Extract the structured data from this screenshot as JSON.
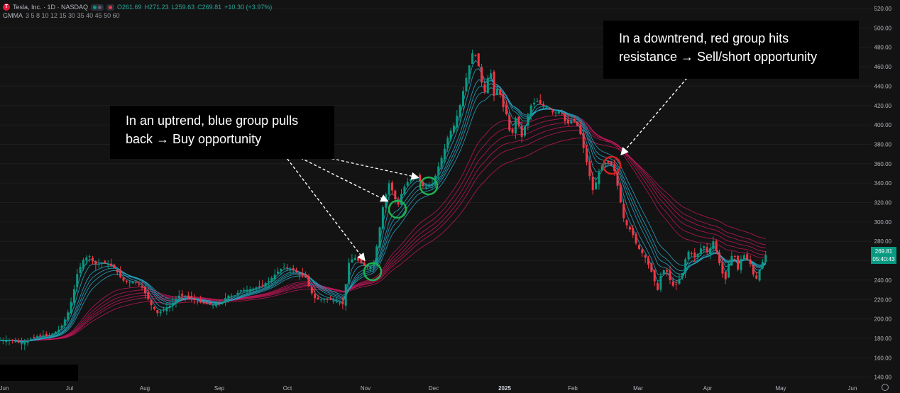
{
  "header": {
    "logo_letter": "T",
    "symbol_line": "Tesla, Inc. · 1D · NASDAQ",
    "ohlc": {
      "open": "O261.69",
      "high": "H271.23",
      "low": "L259.63",
      "close": "C269.81",
      "change": "+10.30 (+3.97%)"
    },
    "indicator_name": "GMMA",
    "indicator_periods": "3 5 8 10 12 15 30 35 40 45 50 60"
  },
  "annotations": {
    "uptrend": "In an uptrend, blue group pulls back → Buy opportunity",
    "downtrend": "In a downtrend, red group hits resistance → Sell/short opportunity"
  },
  "price_label": {
    "price": "269.81",
    "countdown": "05:40:43"
  },
  "colors": {
    "background": "#131313",
    "up": "#089981",
    "down": "#f23645",
    "fast_group": "#27a9c9",
    "slow_group": "#c2185b",
    "buy_circle": "#1fb14f",
    "sell_circle": "#d71f1f",
    "grid": "#1e1e1e"
  },
  "chart_data": {
    "type": "candlestick",
    "y_axis_ticks": [
      520,
      500,
      480,
      460,
      440,
      420,
      400,
      380,
      360,
      340,
      320,
      300,
      280,
      260,
      240,
      220,
      200,
      180,
      160,
      140
    ],
    "ylim": [
      130,
      528
    ],
    "x_axis_labels": [
      "Jun",
      "Jul",
      "Aug",
      "Sep",
      "Oct",
      "Nov",
      "Dec",
      "2025",
      "Feb",
      "Mar",
      "Apr",
      "May",
      "Jun"
    ],
    "close_path": [
      [
        0,
        178
      ],
      [
        15,
        178
      ],
      [
        30,
        175
      ],
      [
        45,
        180
      ],
      [
        55,
        183
      ],
      [
        70,
        183
      ],
      [
        85,
        190
      ],
      [
        95,
        205
      ],
      [
        103,
        225
      ],
      [
        108,
        245
      ],
      [
        118,
        262
      ],
      [
        126,
        265
      ],
      [
        134,
        256
      ],
      [
        144,
        258
      ],
      [
        154,
        256
      ],
      [
        162,
        252
      ],
      [
        172,
        240
      ],
      [
        180,
        238
      ],
      [
        190,
        238
      ],
      [
        198,
        235
      ],
      [
        207,
        223
      ],
      [
        214,
        213
      ],
      [
        222,
        206
      ],
      [
        232,
        210
      ],
      [
        242,
        215
      ],
      [
        252,
        224
      ],
      [
        262,
        224
      ],
      [
        272,
        220
      ],
      [
        282,
        217
      ],
      [
        292,
        215
      ],
      [
        302,
        214
      ],
      [
        312,
        216
      ],
      [
        320,
        224
      ],
      [
        330,
        224
      ],
      [
        340,
        230
      ],
      [
        350,
        230
      ],
      [
        360,
        232
      ],
      [
        370,
        235
      ],
      [
        380,
        240
      ],
      [
        390,
        248
      ],
      [
        400,
        254
      ],
      [
        407,
        252
      ],
      [
        414,
        250
      ],
      [
        422,
        246
      ],
      [
        430,
        244
      ],
      [
        438,
        228
      ],
      [
        445,
        220
      ],
      [
        455,
        220
      ],
      [
        465,
        220
      ],
      [
        475,
        218
      ],
      [
        483,
        215
      ],
      [
        492,
        260
      ],
      [
        500,
        263
      ],
      [
        508,
        258
      ],
      [
        515,
        254
      ],
      [
        520,
        253
      ],
      [
        526,
        256
      ],
      [
        532,
        280
      ],
      [
        540,
        318
      ],
      [
        548,
        340
      ],
      [
        555,
        328
      ],
      [
        560,
        315
      ],
      [
        566,
        330
      ],
      [
        572,
        340
      ],
      [
        580,
        345
      ],
      [
        587,
        348
      ],
      [
        594,
        338
      ],
      [
        602,
        335
      ],
      [
        610,
        340
      ],
      [
        618,
        358
      ],
      [
        625,
        372
      ],
      [
        632,
        390
      ],
      [
        640,
        400
      ],
      [
        648,
        420
      ],
      [
        654,
        440
      ],
      [
        660,
        458
      ],
      [
        666,
        475
      ],
      [
        672,
        470
      ],
      [
        678,
        445
      ],
      [
        684,
        432
      ],
      [
        690,
        462
      ],
      [
        696,
        430
      ],
      [
        702,
        440
      ],
      [
        708,
        420
      ],
      [
        714,
        410
      ],
      [
        720,
        385
      ],
      [
        728,
        412
      ],
      [
        734,
        385
      ],
      [
        741,
        402
      ],
      [
        748,
        420
      ],
      [
        756,
        425
      ],
      [
        764,
        420
      ],
      [
        772,
        418
      ],
      [
        780,
        412
      ],
      [
        790,
        415
      ],
      [
        798,
        400
      ],
      [
        806,
        405
      ],
      [
        812,
        402
      ],
      [
        818,
        390
      ],
      [
        824,
        370
      ],
      [
        830,
        350
      ],
      [
        836,
        330
      ],
      [
        842,
        348
      ],
      [
        848,
        358
      ],
      [
        854,
        362
      ],
      [
        860,
        360
      ],
      [
        866,
        352
      ],
      [
        872,
        330
      ],
      [
        878,
        305
      ],
      [
        884,
        295
      ],
      [
        890,
        290
      ],
      [
        896,
        278
      ],
      [
        902,
        270
      ],
      [
        908,
        265
      ],
      [
        914,
        255
      ],
      [
        920,
        245
      ],
      [
        926,
        228
      ],
      [
        932,
        248
      ],
      [
        938,
        252
      ],
      [
        944,
        240
      ],
      [
        950,
        232
      ],
      [
        956,
        240
      ],
      [
        962,
        248
      ],
      [
        968,
        270
      ],
      [
        974,
        268
      ],
      [
        980,
        262
      ],
      [
        986,
        272
      ],
      [
        992,
        275
      ],
      [
        998,
        266
      ],
      [
        1004,
        282
      ],
      [
        1010,
        268
      ],
      [
        1016,
        250
      ],
      [
        1022,
        240
      ],
      [
        1028,
        262
      ],
      [
        1034,
        268
      ],
      [
        1040,
        250
      ],
      [
        1046,
        268
      ],
      [
        1052,
        262
      ],
      [
        1058,
        256
      ],
      [
        1064,
        238
      ],
      [
        1070,
        250
      ],
      [
        1076,
        262
      ],
      [
        1082,
        269.81
      ]
    ]
  }
}
